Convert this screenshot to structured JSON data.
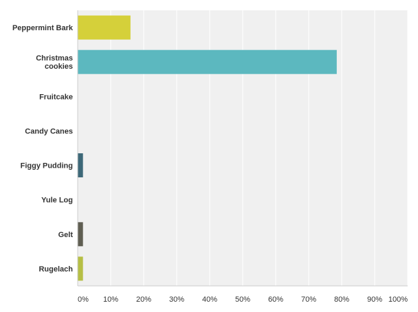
{
  "chart_data": {
    "type": "bar",
    "orientation": "horizontal",
    "categories": [
      "Peppermint Bark",
      "Christmas cookies",
      "Fruitcake",
      "Candy Canes",
      "Figgy Pudding",
      "Yule Log",
      "Gelt",
      "Rugelach"
    ],
    "values": [
      16,
      78.5,
      0,
      0,
      1.6,
      0,
      1.6,
      1.6
    ],
    "value_unit": "%",
    "bar_colors": [
      "#d5d03a",
      "#5cb8bf",
      "#5cb8bf",
      "#5cb8bf",
      "#3d6878",
      "#3d6878",
      "#5f5e52",
      "#b6bf45"
    ],
    "xlim": [
      0,
      100
    ],
    "xticks": [
      "0%",
      "10%",
      "20%",
      "30%",
      "40%",
      "50%",
      "60%",
      "70%",
      "80%",
      "90%",
      "100%"
    ],
    "grid": true,
    "title": "",
    "xlabel": "",
    "ylabel": "",
    "plot_background": "#f0f0f0",
    "grid_color": "#ffffff",
    "axis_color": "#cccccc"
  }
}
